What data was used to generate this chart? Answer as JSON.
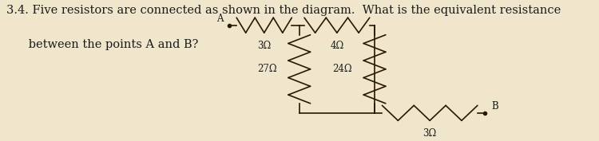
{
  "title_line1": "3.4. Five resistors are connected as shown in the diagram.  What is the equivalent resistance",
  "title_line2": "      between the points A and B?",
  "bg_color": "#f0e6cc",
  "text_color": "#1a1a1a",
  "line_color": "#2a1800",
  "font_size_title": 10.5,
  "font_size_label": 8.5,
  "nodes": {
    "xA": 0.455,
    "yTop": 0.82,
    "xMid": 0.595,
    "xRight": 0.745,
    "yBot": 0.18,
    "xB": 0.965
  },
  "labels": {
    "r1": "3Ω",
    "r2": "4Ω",
    "r3": "27Ω",
    "r4": "24Ω",
    "r5": "3Ω",
    "A": "A",
    "B": "B"
  }
}
